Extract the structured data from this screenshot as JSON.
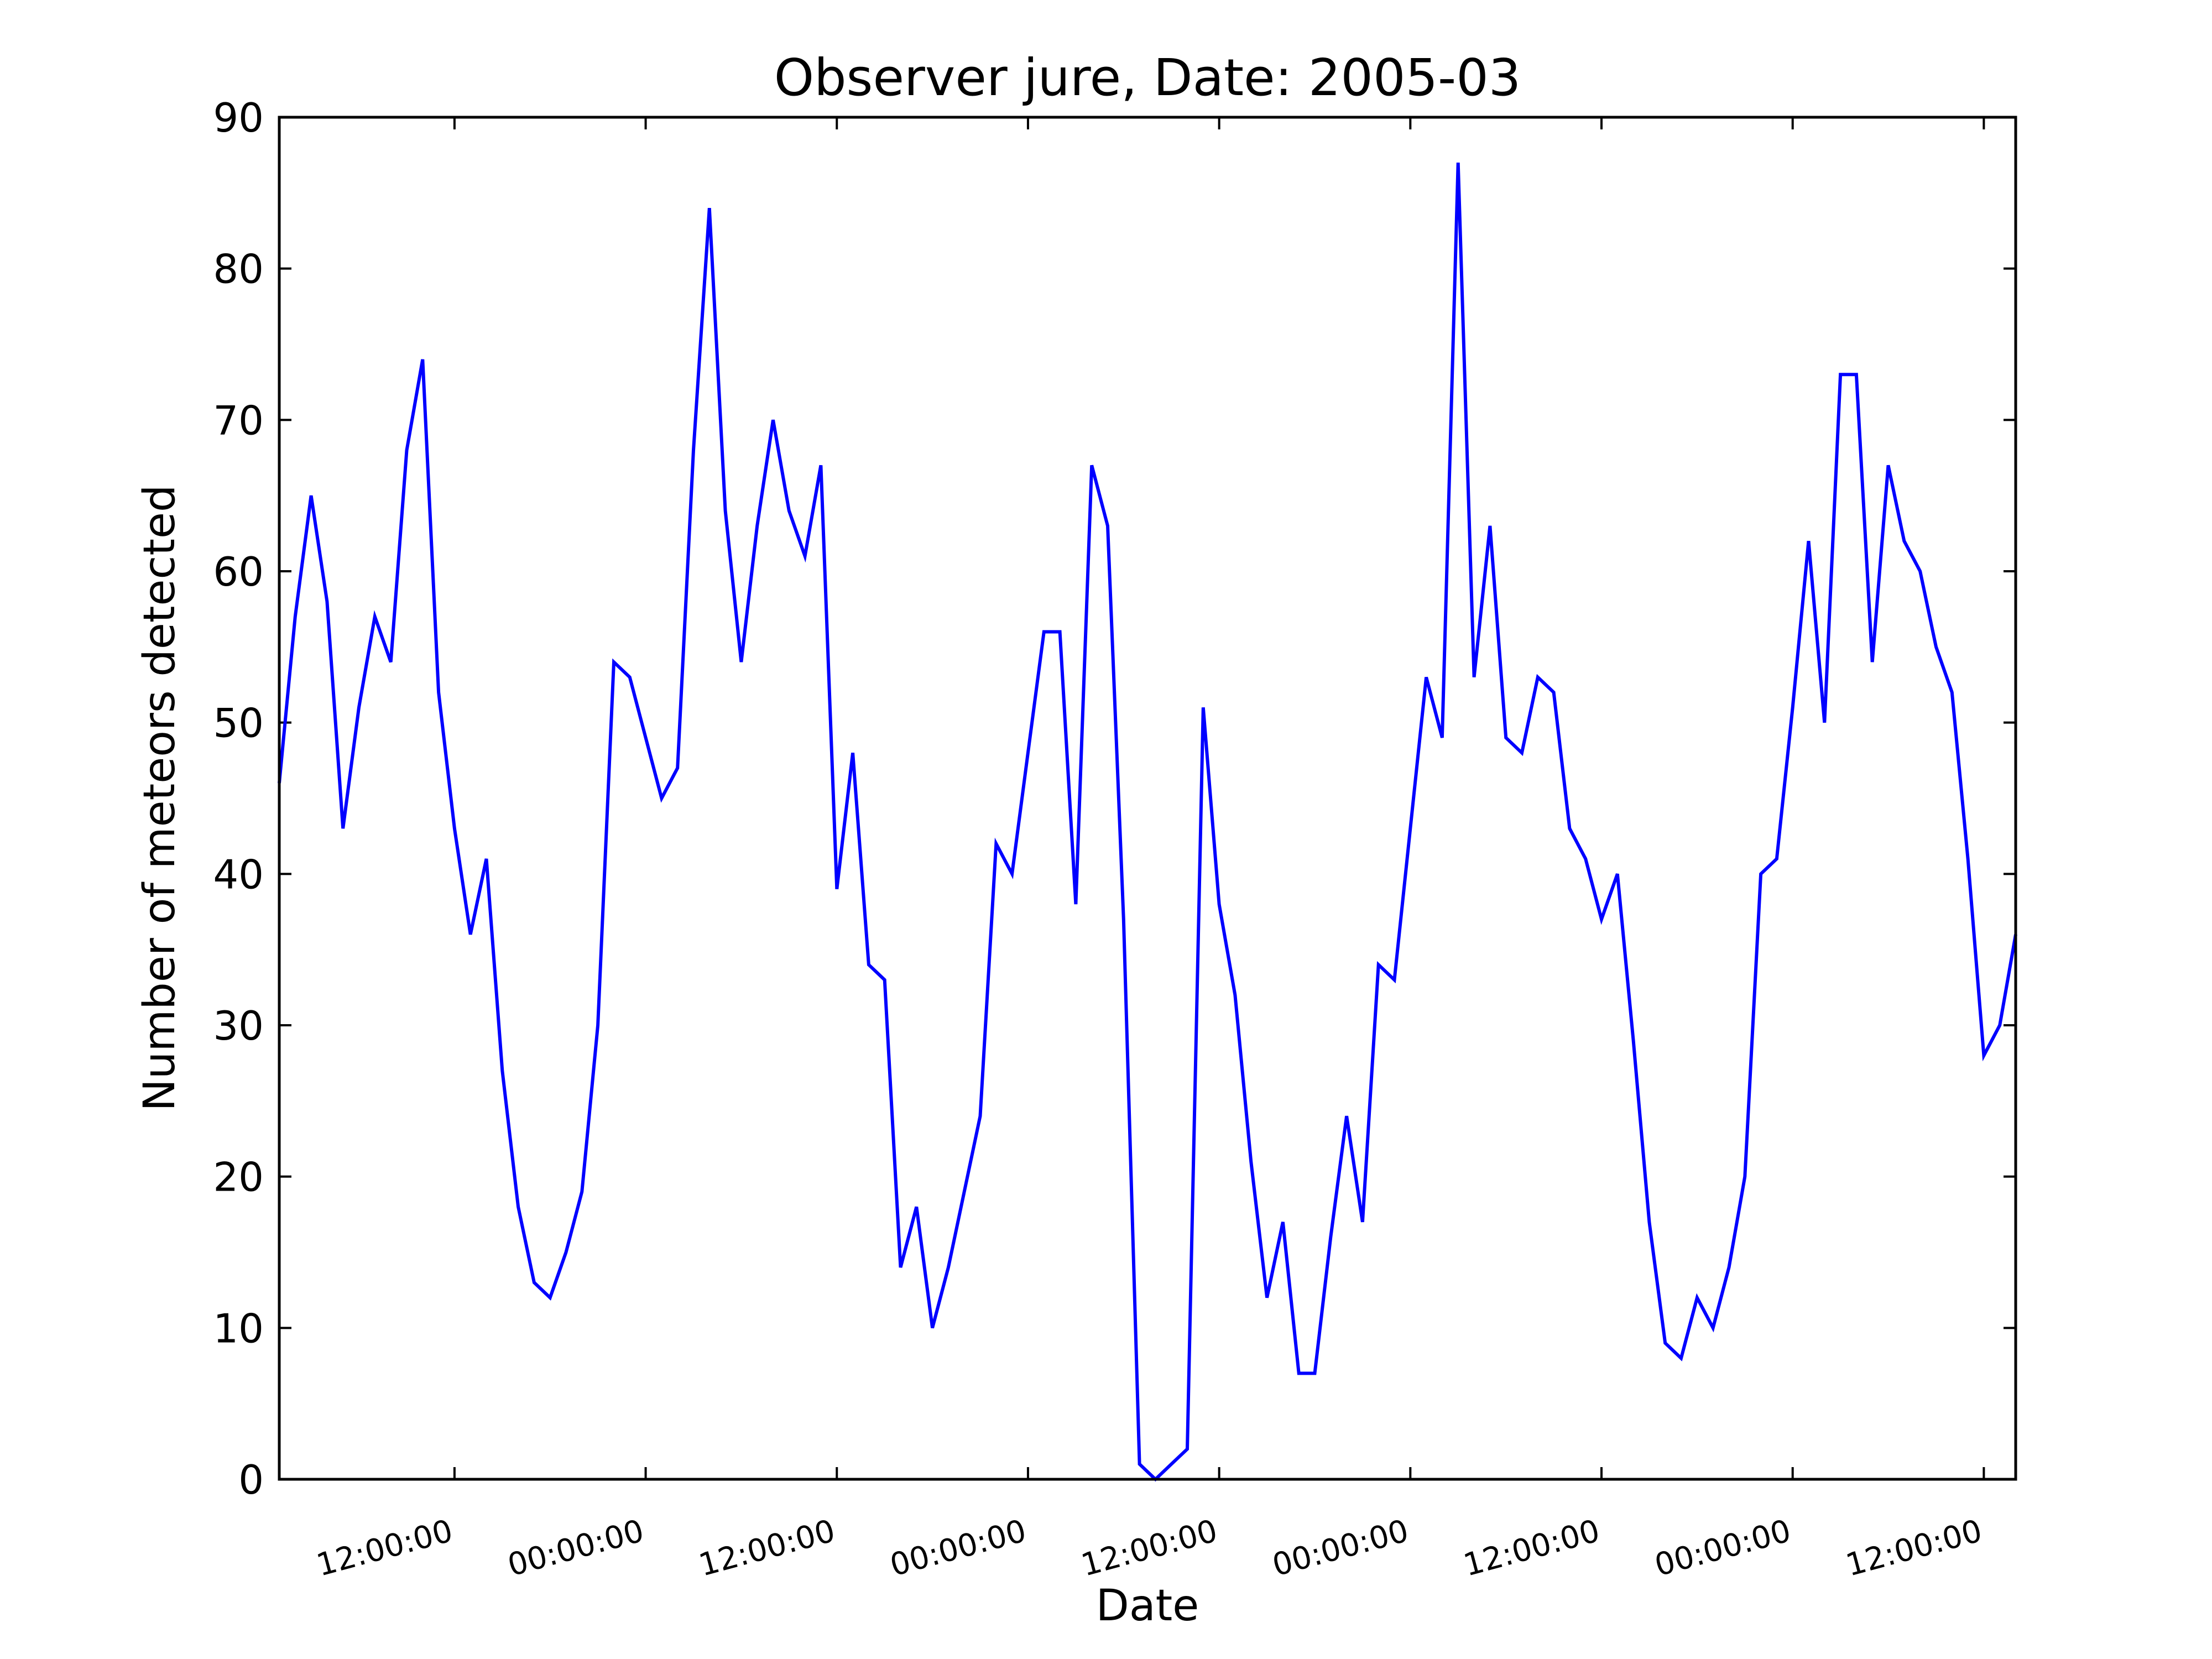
{
  "chart_data": {
    "type": "line",
    "title": "Observer jure, Date: 2005-03",
    "xlabel": "Date",
    "ylabel": "Number of meteors detected",
    "ylim": [
      0,
      90
    ],
    "yticks": [
      0,
      10,
      20,
      30,
      40,
      50,
      60,
      70,
      80,
      90
    ],
    "xlim_hours": [
      0,
      109
    ],
    "xticks": [
      {
        "hour": 11,
        "label": "12:00:00"
      },
      {
        "hour": 23,
        "label": "00:00:00"
      },
      {
        "hour": 35,
        "label": "12:00:00"
      },
      {
        "hour": 47,
        "label": "00:00:00"
      },
      {
        "hour": 59,
        "label": "12:00:00"
      },
      {
        "hour": 71,
        "label": "00:00:00"
      },
      {
        "hour": 83,
        "label": "12:00:00"
      },
      {
        "hour": 95,
        "label": "00:00:00"
      },
      {
        "hour": 107,
        "label": "12:00:00"
      }
    ],
    "grid": false,
    "line_color": "#0000ff",
    "series": [
      {
        "values": [
          46,
          57,
          65,
          58,
          43,
          51,
          57,
          54,
          68,
          74,
          52,
          43,
          36,
          41,
          27,
          18,
          13,
          12,
          15,
          19,
          30,
          54,
          53,
          49,
          45,
          47,
          68,
          84,
          64,
          54,
          63,
          70,
          64,
          61,
          67,
          39,
          48,
          34,
          33,
          14,
          18,
          10,
          14,
          19,
          24,
          42,
          40,
          48,
          56,
          56,
          38,
          67,
          63,
          37,
          1,
          0,
          1,
          2,
          51,
          38,
          32,
          21,
          12,
          17,
          7,
          7,
          16,
          24,
          17,
          34,
          33,
          43,
          53,
          49,
          87,
          53,
          63,
          49,
          48,
          53,
          52,
          43,
          41,
          37,
          40,
          29,
          17,
          9,
          8,
          12,
          10,
          14,
          20,
          40,
          41,
          51,
          62,
          50,
          73,
          73,
          54,
          67,
          62,
          60,
          55,
          52,
          41,
          28,
          30,
          36
        ]
      }
    ]
  }
}
